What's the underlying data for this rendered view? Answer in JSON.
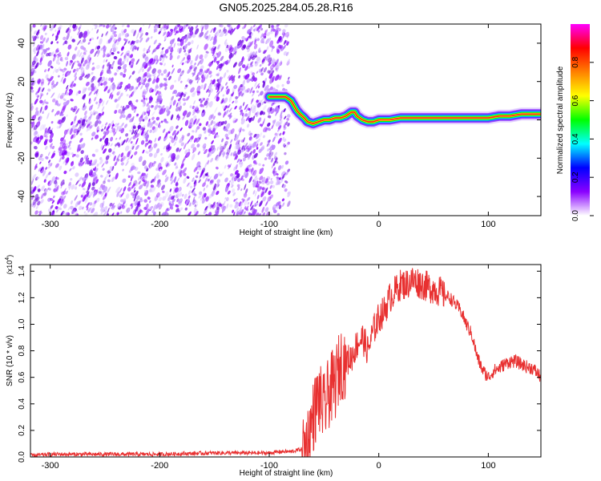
{
  "title": "GN05.2025.284.05.28.R16",
  "chart_data": [
    {
      "type": "heatmap",
      "xlabel": "Height of straight line (km)",
      "ylabel": "Frequency (Hz)",
      "xlim": [
        -318,
        148
      ],
      "ylim": [
        -50,
        50
      ],
      "xticks": [
        -300,
        -200,
        -100,
        0,
        100
      ],
      "xtick_labels": [
        "-300",
        "-200",
        "-100",
        "0",
        "100"
      ],
      "yticks": [
        -40,
        -20,
        0,
        20,
        40
      ],
      "ytick_labels": [
        "-40",
        "-20",
        "0",
        "20",
        "40"
      ],
      "grid": false,
      "noise_region_x": [
        -318,
        -82
      ],
      "ridge": {
        "x": [
          -100,
          -92,
          -85,
          -80,
          -78,
          -75,
          -72,
          -68,
          -65,
          -60,
          -55,
          -50,
          -45,
          -40,
          -35,
          -30,
          -25,
          -22,
          -20,
          -15,
          -10,
          -5,
          0,
          10,
          20,
          30,
          40,
          50,
          60,
          70,
          80,
          90,
          100,
          110,
          120,
          130,
          140,
          148
        ],
        "y": [
          12,
          12,
          12,
          10,
          8,
          5,
          3,
          1,
          -1,
          -2,
          -1,
          0,
          0,
          1,
          1,
          2,
          4,
          4,
          2,
          0,
          -1,
          -1,
          0,
          0,
          1,
          1,
          1,
          1,
          1,
          1,
          1,
          1,
          1,
          2,
          2,
          3,
          3,
          3
        ]
      },
      "colorbar": {
        "label": "Normalized spectral amplitude",
        "range": [
          0,
          1
        ],
        "ticks": [
          0.0,
          0.2,
          0.4,
          0.6,
          0.8
        ],
        "tick_labels": [
          "0.0",
          "0.2",
          "0.4",
          "0.6",
          "0.8"
        ],
        "colors": [
          "#ffffff",
          "#8a00ff",
          "#0000ff",
          "#00ffff",
          "#00ff00",
          "#ffff00",
          "#ff8000",
          "#ff0000",
          "#ff00ff"
        ]
      }
    },
    {
      "type": "line",
      "xlabel": "Height of straight line (km)",
      "ylabel": "SNR (10 * v/v)",
      "y_multiplier": "(x10",
      "y_multiplier_exp": "4",
      "y_multiplier_close": ")",
      "xlim": [
        -318,
        148
      ],
      "ylim": [
        0,
        1.45
      ],
      "xticks": [
        -300,
        -200,
        -100,
        0,
        100
      ],
      "xtick_labels": [
        "-300",
        "-200",
        "-100",
        "0",
        "100"
      ],
      "yticks": [
        0.0,
        0.2,
        0.4,
        0.6,
        0.8,
        1.0,
        1.2,
        1.4
      ],
      "ytick_labels": [
        "0.0",
        "0.2",
        "0.4",
        "0.6",
        "0.8",
        "1.0",
        "1.2",
        "1.4"
      ],
      "grid": false,
      "line_color": "#e83030",
      "series": [
        {
          "x": [
            -318,
            -300,
            -250,
            -200,
            -150,
            -120,
            -100,
            -90,
            -80,
            -70,
            -65,
            -60,
            -55,
            -50,
            -45,
            -40,
            -35,
            -30,
            -25,
            -20,
            -15,
            -10,
            -5,
            0,
            5,
            10,
            15,
            20,
            25,
            30,
            35,
            40,
            45,
            50,
            55,
            60,
            65,
            70,
            75,
            80,
            85,
            90,
            95,
            100,
            105,
            110,
            115,
            120,
            125,
            130,
            135,
            140,
            145,
            148
          ],
          "y": [
            0.01,
            0.02,
            0.02,
            0.02,
            0.03,
            0.03,
            0.03,
            0.04,
            0.04,
            0.06,
            0.12,
            0.3,
            0.45,
            0.35,
            0.5,
            0.55,
            0.7,
            0.72,
            0.75,
            0.85,
            0.9,
            0.8,
            0.95,
            1.05,
            1.1,
            1.2,
            1.25,
            1.3,
            1.3,
            1.33,
            1.32,
            1.3,
            1.28,
            1.27,
            1.25,
            1.22,
            1.2,
            1.15,
            1.1,
            1.0,
            0.92,
            0.75,
            0.65,
            0.6,
            0.65,
            0.67,
            0.7,
            0.72,
            0.72,
            0.7,
            0.68,
            0.67,
            0.63,
            0.6
          ]
        }
      ]
    }
  ]
}
